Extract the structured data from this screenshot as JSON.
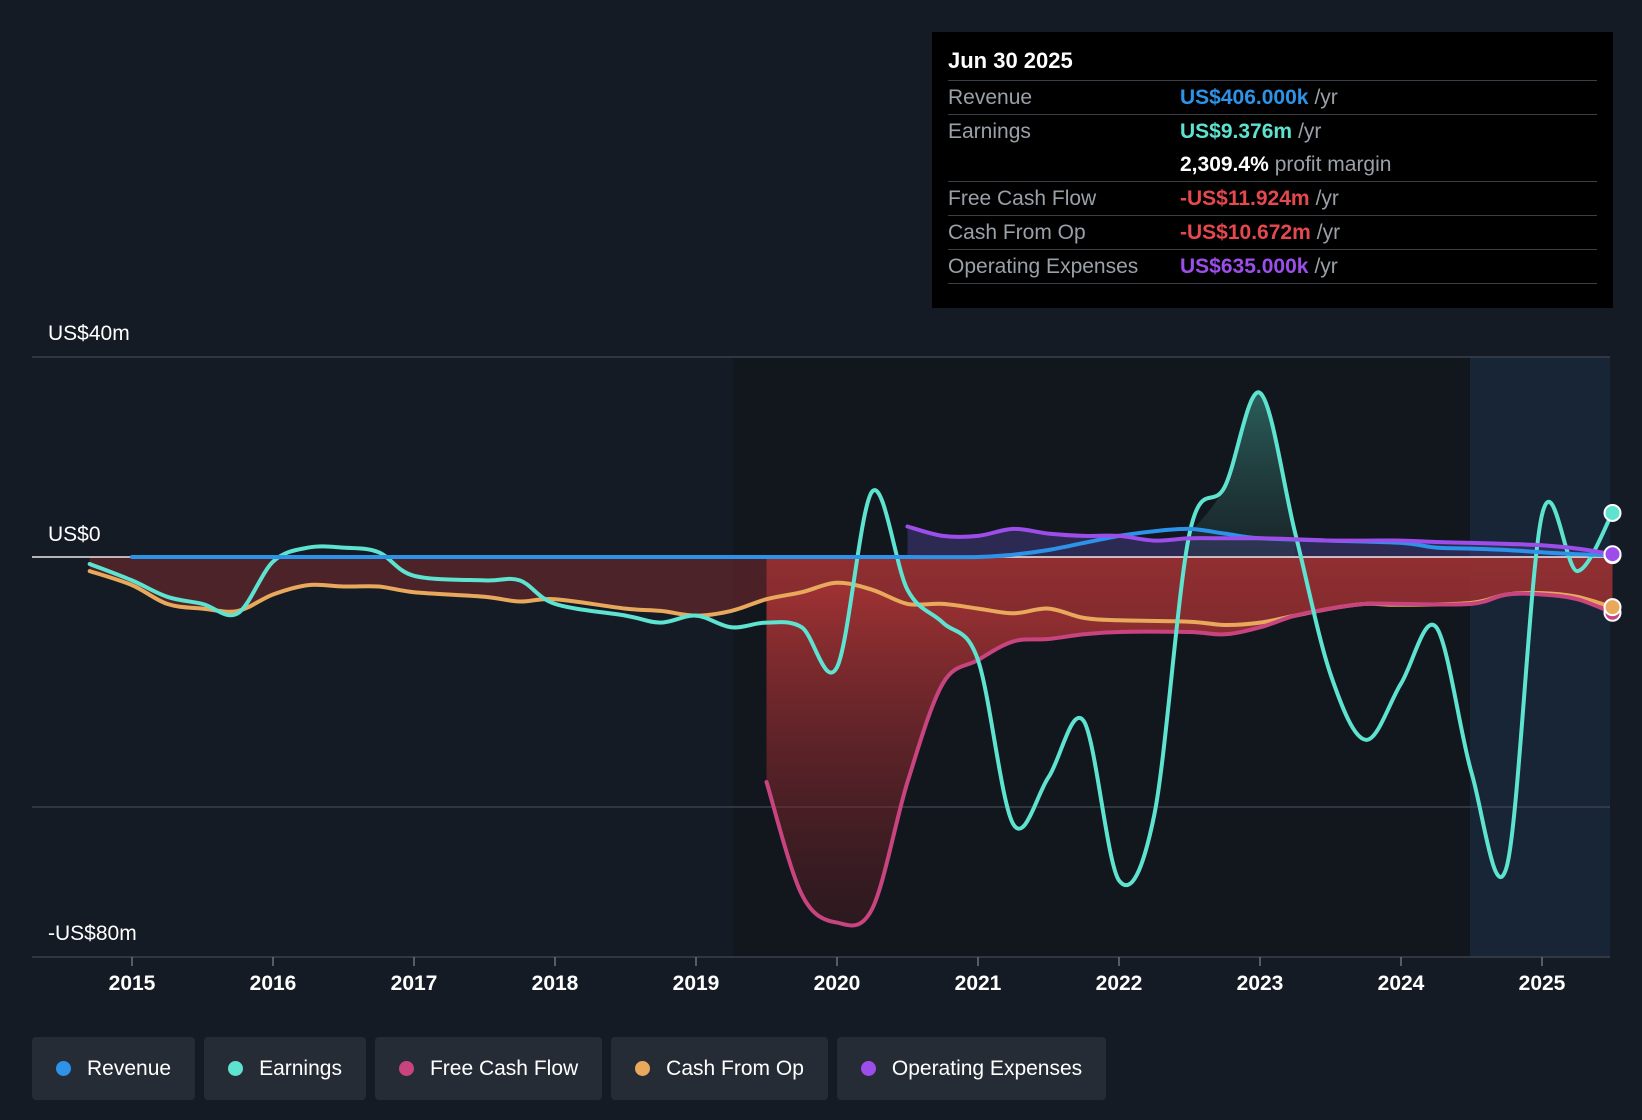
{
  "tooltip": {
    "date": "Jun 30 2025",
    "rows": [
      {
        "label": "Revenue",
        "value": "US$406.000k",
        "unit": "/yr",
        "color": "#2d93e8"
      },
      {
        "label": "Earnings",
        "value": "US$9.376m",
        "unit": "/yr",
        "color": "#5ee3d0"
      },
      {
        "label": "",
        "value": "2,309.4%",
        "unit": "profit margin",
        "color": "#ffffff"
      },
      {
        "label": "Free Cash Flow",
        "value": "-US$11.924m",
        "unit": "/yr",
        "color": "#e5484d"
      },
      {
        "label": "Cash From Op",
        "value": "-US$10.672m",
        "unit": "/yr",
        "color": "#e5484d"
      },
      {
        "label": "Operating Expenses",
        "value": "US$635.000k",
        "unit": "/yr",
        "color": "#9d4eea"
      }
    ]
  },
  "legend": [
    {
      "label": "Revenue",
      "color": "#2d93e8"
    },
    {
      "label": "Earnings",
      "color": "#5ee3d0"
    },
    {
      "label": "Free Cash Flow",
      "color": "#c8447f"
    },
    {
      "label": "Cash From Op",
      "color": "#e8a95c"
    },
    {
      "label": "Operating Expenses",
      "color": "#9d4eea"
    }
  ],
  "chart_data": {
    "type": "line",
    "y_unit": "US$ millions",
    "ylim": [
      -80,
      40
    ],
    "y_tick_labels": [
      {
        "value": 40,
        "label": "US$40m"
      },
      {
        "value": 0,
        "label": "US$0"
      },
      {
        "value": -80,
        "label": "-US$80m"
      }
    ],
    "xlim": [
      2014.3,
      2025.5
    ],
    "x_ticks": [
      2015,
      2016,
      2017,
      2018,
      2019,
      2020,
      2021,
      2022,
      2023,
      2024,
      2025
    ],
    "forecast_start": 2024.5,
    "grid": true,
    "series": [
      {
        "name": "Revenue",
        "color": "#2d93e8",
        "x": [
          2015,
          2016,
          2017,
          2018,
          2019,
          2020,
          2020.5,
          2021,
          2021.25,
          2021.5,
          2021.75,
          2022,
          2022.25,
          2022.5,
          2022.75,
          2023,
          2023.5,
          2024,
          2024.25,
          2024.5,
          2024.75,
          2025,
          2025.25,
          2025.5
        ],
        "values": [
          0,
          0,
          0,
          0,
          0,
          0,
          0,
          0,
          0.5,
          1.5,
          3,
          4.5,
          5.5,
          6,
          5,
          4,
          3.5,
          3,
          2,
          1.8,
          1.5,
          1,
          0.6,
          0.4
        ]
      },
      {
        "name": "Earnings",
        "color": "#5ee3d0",
        "x": [
          2014.7,
          2015,
          2015.25,
          2015.5,
          2015.75,
          2016,
          2016.25,
          2016.5,
          2016.75,
          2017,
          2017.5,
          2017.75,
          2018,
          2018.5,
          2018.75,
          2019,
          2019.25,
          2019.5,
          2019.75,
          2020,
          2020.25,
          2020.5,
          2020.75,
          2021,
          2021.25,
          2021.5,
          2021.75,
          2022,
          2022.25,
          2022.5,
          2022.75,
          2023,
          2023.25,
          2023.5,
          2023.75,
          2024,
          2024.25,
          2024.5,
          2024.75,
          2025,
          2025.25,
          2025.5
        ],
        "values": [
          -1.5,
          -5,
          -8.5,
          -10,
          -12,
          -1,
          2,
          2,
          1,
          -4,
          -5,
          -5,
          -10,
          -12.5,
          -14,
          -12.5,
          -15,
          -14,
          -15,
          -23.5,
          14,
          -7,
          -14,
          -22,
          -57,
          -47,
          -35,
          -69,
          -55,
          5,
          15,
          35,
          5,
          -25,
          -39,
          -27,
          -15,
          -46,
          -66,
          9,
          -3,
          9.4
        ]
      },
      {
        "name": "Free Cash Flow",
        "color": "#c8447f",
        "x": [
          2019.5,
          2019.75,
          2020,
          2020.25,
          2020.5,
          2020.75,
          2021,
          2021.25,
          2021.5,
          2021.75,
          2022,
          2022.5,
          2022.75,
          2023,
          2023.25,
          2023.5,
          2023.75,
          2024,
          2024.5,
          2024.75,
          2025,
          2025.25,
          2025.5
        ],
        "values": [
          -48,
          -72,
          -78,
          -75,
          -48,
          -27,
          -22,
          -18,
          -17.5,
          -16.5,
          -16,
          -16,
          -16.5,
          -15,
          -12.5,
          -11,
          -10,
          -10,
          -10,
          -8,
          -8,
          -9,
          -11.9
        ]
      },
      {
        "name": "Cash From Op",
        "color": "#e8a95c",
        "x": [
          2014.7,
          2015,
          2015.25,
          2015.5,
          2015.75,
          2016,
          2016.25,
          2016.5,
          2016.75,
          2017,
          2017.5,
          2017.75,
          2018,
          2018.5,
          2018.75,
          2019,
          2019.25,
          2019.5,
          2019.75,
          2020,
          2020.25,
          2020.5,
          2020.75,
          2021,
          2021.25,
          2021.5,
          2021.75,
          2022,
          2022.5,
          2022.75,
          2023,
          2023.25,
          2023.5,
          2023.75,
          2024,
          2024.5,
          2024.75,
          2025,
          2025.25,
          2025.5
        ],
        "values": [
          -3,
          -6,
          -10,
          -11,
          -11.5,
          -8,
          -6,
          -6.3,
          -6.3,
          -7.5,
          -8.5,
          -9.5,
          -9,
          -11,
          -11.5,
          -12.5,
          -11.5,
          -9,
          -7.5,
          -5.5,
          -7,
          -10,
          -10,
          -11,
          -12,
          -11,
          -13,
          -13.5,
          -13.8,
          -14.5,
          -14,
          -12.5,
          -11,
          -10,
          -10.2,
          -9.8,
          -8,
          -7.7,
          -8.5,
          -10.7
        ]
      },
      {
        "name": "Operating Expenses",
        "color": "#9d4eea",
        "x": [
          2020.5,
          2020.75,
          2021,
          2021.25,
          2021.5,
          2021.75,
          2022,
          2022.25,
          2022.5,
          2022.75,
          2023,
          2023.25,
          2023.5,
          2023.75,
          2024,
          2024.25,
          2024.5,
          2024.75,
          2025,
          2025.25,
          2025.5
        ],
        "values": [
          6.5,
          4.5,
          4.5,
          6,
          5,
          4.5,
          4.5,
          3.5,
          4,
          4,
          4,
          3.8,
          3.5,
          3.5,
          3.5,
          3.2,
          3,
          2.8,
          2.5,
          1.8,
          0.6
        ]
      }
    ]
  }
}
